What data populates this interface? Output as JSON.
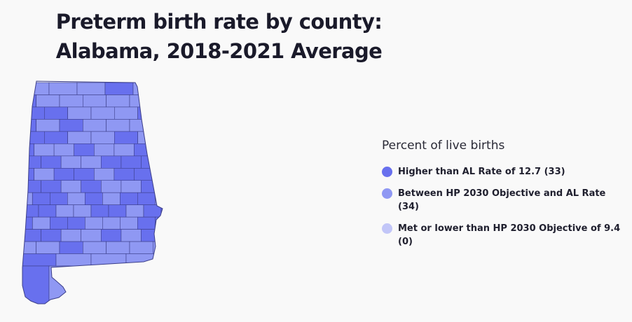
{
  "title": {
    "line1": "Preterm birth rate by county:",
    "line2": "Alabama, 2018-2021 Average"
  },
  "legend": {
    "title": "Percent of live births",
    "items": [
      {
        "label": "Higher than AL Rate of 12.7 (33)",
        "color": "#6870ee"
      },
      {
        "label": "Between HP 2030 Objective and AL Rate (34)",
        "color": "#8f98f3"
      },
      {
        "label": "Met or lower than HP 2030 Objective of 9.4 (0)",
        "color": "#c2c6f8"
      }
    ]
  },
  "colors": {
    "border": "#3c3f8a",
    "background": "#f9f9f9"
  }
}
